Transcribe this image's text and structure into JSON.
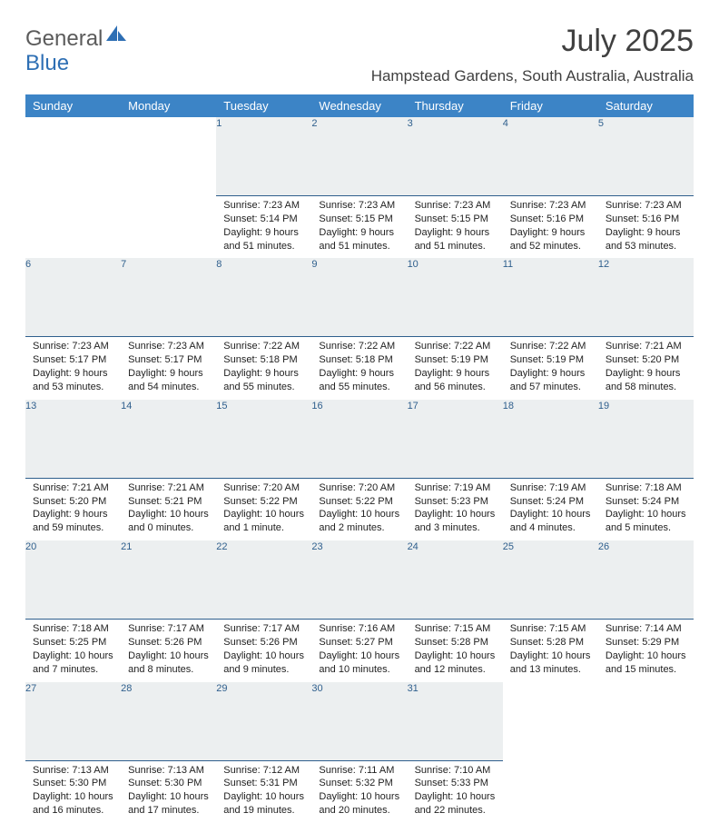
{
  "brand": {
    "word1": "General",
    "word2": "Blue",
    "logo_color": "#2e6fb4",
    "text_color": "#5b5b5b"
  },
  "title": "July 2025",
  "location": "Hampstead Gardens, South Australia, Australia",
  "header_bg": "#3c84c6",
  "header_fg": "#ffffff",
  "daynum_bg": "#eceff0",
  "daynum_fg": "#2f5f8d",
  "rule_color": "#2f5f8d",
  "day_headers": [
    "Sunday",
    "Monday",
    "Tuesday",
    "Wednesday",
    "Thursday",
    "Friday",
    "Saturday"
  ],
  "weeks": [
    [
      null,
      null,
      {
        "n": "1",
        "sr": "Sunrise: 7:23 AM",
        "ss": "Sunset: 5:14 PM",
        "dl": "Daylight: 9 hours and 51 minutes."
      },
      {
        "n": "2",
        "sr": "Sunrise: 7:23 AM",
        "ss": "Sunset: 5:15 PM",
        "dl": "Daylight: 9 hours and 51 minutes."
      },
      {
        "n": "3",
        "sr": "Sunrise: 7:23 AM",
        "ss": "Sunset: 5:15 PM",
        "dl": "Daylight: 9 hours and 51 minutes."
      },
      {
        "n": "4",
        "sr": "Sunrise: 7:23 AM",
        "ss": "Sunset: 5:16 PM",
        "dl": "Daylight: 9 hours and 52 minutes."
      },
      {
        "n": "5",
        "sr": "Sunrise: 7:23 AM",
        "ss": "Sunset: 5:16 PM",
        "dl": "Daylight: 9 hours and 53 minutes."
      }
    ],
    [
      {
        "n": "6",
        "sr": "Sunrise: 7:23 AM",
        "ss": "Sunset: 5:17 PM",
        "dl": "Daylight: 9 hours and 53 minutes."
      },
      {
        "n": "7",
        "sr": "Sunrise: 7:23 AM",
        "ss": "Sunset: 5:17 PM",
        "dl": "Daylight: 9 hours and 54 minutes."
      },
      {
        "n": "8",
        "sr": "Sunrise: 7:22 AM",
        "ss": "Sunset: 5:18 PM",
        "dl": "Daylight: 9 hours and 55 minutes."
      },
      {
        "n": "9",
        "sr": "Sunrise: 7:22 AM",
        "ss": "Sunset: 5:18 PM",
        "dl": "Daylight: 9 hours and 55 minutes."
      },
      {
        "n": "10",
        "sr": "Sunrise: 7:22 AM",
        "ss": "Sunset: 5:19 PM",
        "dl": "Daylight: 9 hours and 56 minutes."
      },
      {
        "n": "11",
        "sr": "Sunrise: 7:22 AM",
        "ss": "Sunset: 5:19 PM",
        "dl": "Daylight: 9 hours and 57 minutes."
      },
      {
        "n": "12",
        "sr": "Sunrise: 7:21 AM",
        "ss": "Sunset: 5:20 PM",
        "dl": "Daylight: 9 hours and 58 minutes."
      }
    ],
    [
      {
        "n": "13",
        "sr": "Sunrise: 7:21 AM",
        "ss": "Sunset: 5:20 PM",
        "dl": "Daylight: 9 hours and 59 minutes."
      },
      {
        "n": "14",
        "sr": "Sunrise: 7:21 AM",
        "ss": "Sunset: 5:21 PM",
        "dl": "Daylight: 10 hours and 0 minutes."
      },
      {
        "n": "15",
        "sr": "Sunrise: 7:20 AM",
        "ss": "Sunset: 5:22 PM",
        "dl": "Daylight: 10 hours and 1 minute."
      },
      {
        "n": "16",
        "sr": "Sunrise: 7:20 AM",
        "ss": "Sunset: 5:22 PM",
        "dl": "Daylight: 10 hours and 2 minutes."
      },
      {
        "n": "17",
        "sr": "Sunrise: 7:19 AM",
        "ss": "Sunset: 5:23 PM",
        "dl": "Daylight: 10 hours and 3 minutes."
      },
      {
        "n": "18",
        "sr": "Sunrise: 7:19 AM",
        "ss": "Sunset: 5:24 PM",
        "dl": "Daylight: 10 hours and 4 minutes."
      },
      {
        "n": "19",
        "sr": "Sunrise: 7:18 AM",
        "ss": "Sunset: 5:24 PM",
        "dl": "Daylight: 10 hours and 5 minutes."
      }
    ],
    [
      {
        "n": "20",
        "sr": "Sunrise: 7:18 AM",
        "ss": "Sunset: 5:25 PM",
        "dl": "Daylight: 10 hours and 7 minutes."
      },
      {
        "n": "21",
        "sr": "Sunrise: 7:17 AM",
        "ss": "Sunset: 5:26 PM",
        "dl": "Daylight: 10 hours and 8 minutes."
      },
      {
        "n": "22",
        "sr": "Sunrise: 7:17 AM",
        "ss": "Sunset: 5:26 PM",
        "dl": "Daylight: 10 hours and 9 minutes."
      },
      {
        "n": "23",
        "sr": "Sunrise: 7:16 AM",
        "ss": "Sunset: 5:27 PM",
        "dl": "Daylight: 10 hours and 10 minutes."
      },
      {
        "n": "24",
        "sr": "Sunrise: 7:15 AM",
        "ss": "Sunset: 5:28 PM",
        "dl": "Daylight: 10 hours and 12 minutes."
      },
      {
        "n": "25",
        "sr": "Sunrise: 7:15 AM",
        "ss": "Sunset: 5:28 PM",
        "dl": "Daylight: 10 hours and 13 minutes."
      },
      {
        "n": "26",
        "sr": "Sunrise: 7:14 AM",
        "ss": "Sunset: 5:29 PM",
        "dl": "Daylight: 10 hours and 15 minutes."
      }
    ],
    [
      {
        "n": "27",
        "sr": "Sunrise: 7:13 AM",
        "ss": "Sunset: 5:30 PM",
        "dl": "Daylight: 10 hours and 16 minutes."
      },
      {
        "n": "28",
        "sr": "Sunrise: 7:13 AM",
        "ss": "Sunset: 5:30 PM",
        "dl": "Daylight: 10 hours and 17 minutes."
      },
      {
        "n": "29",
        "sr": "Sunrise: 7:12 AM",
        "ss": "Sunset: 5:31 PM",
        "dl": "Daylight: 10 hours and 19 minutes."
      },
      {
        "n": "30",
        "sr": "Sunrise: 7:11 AM",
        "ss": "Sunset: 5:32 PM",
        "dl": "Daylight: 10 hours and 20 minutes."
      },
      {
        "n": "31",
        "sr": "Sunrise: 7:10 AM",
        "ss": "Sunset: 5:33 PM",
        "dl": "Daylight: 10 hours and 22 minutes."
      },
      null,
      null
    ]
  ]
}
